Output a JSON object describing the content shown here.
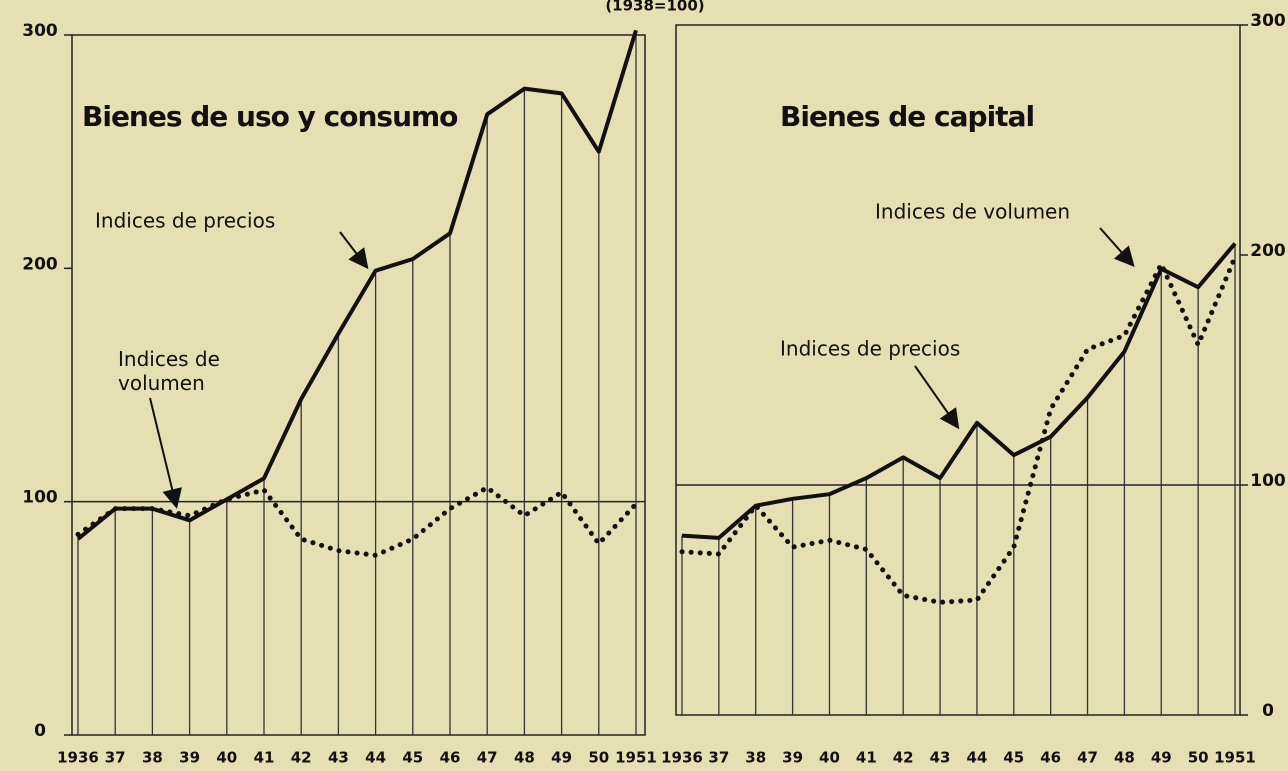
{
  "chart_data": [
    {
      "type": "line",
      "subtitle": "(1938=100)",
      "title": "Bienes de uso y consumo",
      "categories": [
        "1936",
        "37",
        "38",
        "39",
        "40",
        "41",
        "42",
        "43",
        "44",
        "45",
        "46",
        "47",
        "48",
        "49",
        "50",
        "1951"
      ],
      "series": [
        {
          "name": "Indices de precios",
          "color": "#111111",
          "style": "solid",
          "values": [
            84,
            97,
            97,
            92,
            101,
            110,
            144,
            172,
            199,
            204,
            215,
            266,
            277,
            275,
            250,
            302
          ]
        },
        {
          "name": "Indices de volumen",
          "color": "#111111",
          "style": "dotted",
          "values": [
            86,
            97,
            97,
            94,
            101,
            105,
            84,
            79,
            77,
            84,
            97,
            106,
            94,
            104,
            82,
            99
          ]
        }
      ],
      "ylim": [
        0,
        300
      ],
      "yticks": [
        0,
        100,
        200,
        300
      ],
      "axis_side": "left",
      "reference": 100
    },
    {
      "type": "line",
      "title": "Bienes de capital",
      "categories": [
        "1936",
        "37",
        "38",
        "39",
        "40",
        "41",
        "42",
        "43",
        "44",
        "45",
        "46",
        "47",
        "48",
        "49",
        "50",
        "1951"
      ],
      "series": [
        {
          "name": "Indices de volumen",
          "color": "#111111",
          "style": "dotted",
          "values": [
            71,
            70,
            91,
            73,
            76,
            72,
            52,
            49,
            50,
            73,
            133,
            159,
            165,
            196,
            161,
            199
          ]
        },
        {
          "name": "Indices de precios",
          "color": "#111111",
          "style": "solid",
          "values": [
            78,
            77,
            91,
            94,
            96,
            103,
            112,
            103,
            127,
            113,
            121,
            138,
            158,
            194,
            186,
            205
          ]
        }
      ],
      "ylim": [
        0,
        300
      ],
      "yticks": [
        0,
        100,
        200,
        300
      ],
      "axis_side": "right",
      "reference": 100
    }
  ]
}
